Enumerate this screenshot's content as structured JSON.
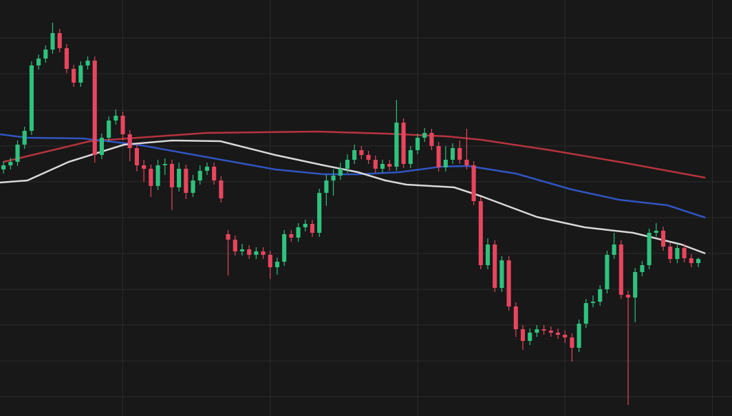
{
  "chart_data": {
    "type": "candlestick",
    "up_color": "#2ec27e",
    "down_color": "#e8455f",
    "grid": true,
    "xlim": [
      -0.5,
      103.8
    ],
    "ylim": [
      0,
      604
    ],
    "xticks": [
      17,
      38,
      59,
      80,
      101
    ],
    "yticks": [
      549,
      497,
      444,
      392,
      340,
      288,
      236,
      184,
      132,
      80,
      28
    ],
    "open": [
      358,
      364,
      369,
      394,
      414,
      509,
      519,
      532,
      556,
      534,
      504,
      484,
      509,
      516,
      379,
      404,
      429,
      436,
      409,
      389,
      364,
      359,
      334,
      364,
      366,
      332,
      359,
      324,
      342,
      356,
      362,
      342,
      264,
      256,
      239,
      242,
      234,
      239,
      234,
      216,
      224,
      264,
      259,
      274,
      279,
      266,
      324,
      342,
      349,
      359,
      372,
      386,
      379,
      372,
      359,
      366,
      362,
      426,
      366,
      386,
      404,
      411,
      392,
      361,
      372,
      389,
      372,
      364,
      312,
      219,
      249,
      186,
      226,
      159,
      126,
      109,
      121,
      126,
      124,
      121,
      118,
      114,
      99,
      134,
      164,
      166,
      184,
      234,
      249,
      176,
      172,
      209,
      219,
      266,
      269,
      246,
      228,
      244,
      229,
      222
    ],
    "high": [
      370,
      375,
      400,
      420,
      515,
      525,
      538,
      571,
      562,
      540,
      510,
      515,
      522,
      522,
      410,
      435,
      445,
      442,
      415,
      395,
      372,
      365,
      372,
      374,
      372,
      368,
      365,
      350,
      364,
      368,
      368,
      348,
      270,
      262,
      250,
      248,
      245,
      245,
      240,
      230,
      270,
      270,
      280,
      285,
      285,
      330,
      350,
      358,
      368,
      380,
      394,
      392,
      385,
      378,
      372,
      372,
      459,
      432,
      392,
      410,
      418,
      417,
      398,
      392,
      396,
      400,
      417,
      370,
      318,
      258,
      255,
      232,
      232,
      165,
      132,
      127,
      132,
      132,
      130,
      127,
      124,
      120,
      140,
      170,
      175,
      190,
      240,
      266,
      255,
      182,
      215,
      225,
      272,
      280,
      275,
      252,
      250,
      250,
      235,
      230
    ],
    "low": [
      352,
      358,
      363,
      388,
      408,
      503,
      513,
      526,
      528,
      498,
      478,
      478,
      503,
      368,
      373,
      398,
      423,
      400,
      370,
      355,
      340,
      318,
      328,
      350,
      299,
      326,
      315,
      318,
      336,
      350,
      336,
      310,
      204,
      233,
      233,
      228,
      228,
      228,
      199,
      205,
      218,
      253,
      253,
      268,
      260,
      260,
      305,
      320,
      343,
      353,
      366,
      373,
      366,
      353,
      353,
      356,
      356,
      360,
      360,
      380,
      398,
      386,
      355,
      355,
      366,
      366,
      358,
      306,
      213,
      213,
      180,
      180,
      153,
      115,
      96,
      103,
      115,
      118,
      115,
      112,
      106,
      79,
      93,
      128,
      158,
      160,
      178,
      228,
      170,
      16,
      136,
      203,
      213,
      260,
      240,
      222,
      222,
      223,
      216,
      216
    ],
    "close": [
      364,
      369,
      394,
      414,
      509,
      519,
      532,
      556,
      534,
      504,
      484,
      509,
      516,
      379,
      404,
      429,
      436,
      409,
      389,
      364,
      359,
      334,
      364,
      366,
      332,
      359,
      324,
      342,
      356,
      362,
      342,
      316,
      256,
      239,
      242,
      234,
      239,
      234,
      216,
      224,
      264,
      259,
      274,
      279,
      266,
      324,
      342,
      349,
      359,
      372,
      386,
      379,
      372,
      359,
      366,
      362,
      426,
      366,
      386,
      404,
      411,
      392,
      361,
      372,
      389,
      372,
      364,
      312,
      219,
      249,
      186,
      226,
      159,
      126,
      109,
      121,
      126,
      124,
      121,
      118,
      114,
      99,
      134,
      164,
      166,
      184,
      234,
      249,
      176,
      172,
      209,
      219,
      266,
      269,
      246,
      228,
      244,
      229,
      222,
      228
    ],
    "series": [
      {
        "type": "line",
        "color": "#b8333f",
        "x": [
          0,
          2.9,
          12.3,
          19.1,
          28.9,
          44.6,
          54.4,
          63.2,
          68.1,
          77.9,
          87.7,
          100
        ],
        "values": [
          369,
          376,
          399,
          404,
          411,
          413,
          410,
          406,
          401,
          386,
          369,
          346
        ]
      },
      {
        "type": "line",
        "color": "#2f56c4",
        "x": [
          -0.5,
          3.4,
          11.3,
          19.1,
          28.9,
          38.7,
          45.6,
          50.5,
          56.4,
          62.3,
          66.2,
          73,
          80.9,
          87.7,
          94.6,
          100
        ],
        "values": [
          409,
          404,
          403,
          394,
          376,
          358,
          351,
          351,
          354,
          362,
          363,
          352,
          329,
          314,
          306,
          288
        ]
      },
      {
        "type": "line",
        "color": "#d9d9d9",
        "x": [
          -0.5,
          3.4,
          9.3,
          17.2,
          24,
          30.9,
          38.7,
          45.6,
          50.5,
          54.4,
          57.4,
          64.2,
          68.1,
          76,
          82.8,
          89.7,
          96.6,
          100
        ],
        "values": [
          339,
          342,
          369,
          394,
          400,
          399,
          379,
          364,
          354,
          342,
          336,
          332,
          319,
          289,
          274,
          266,
          249,
          236
        ]
      }
    ]
  }
}
